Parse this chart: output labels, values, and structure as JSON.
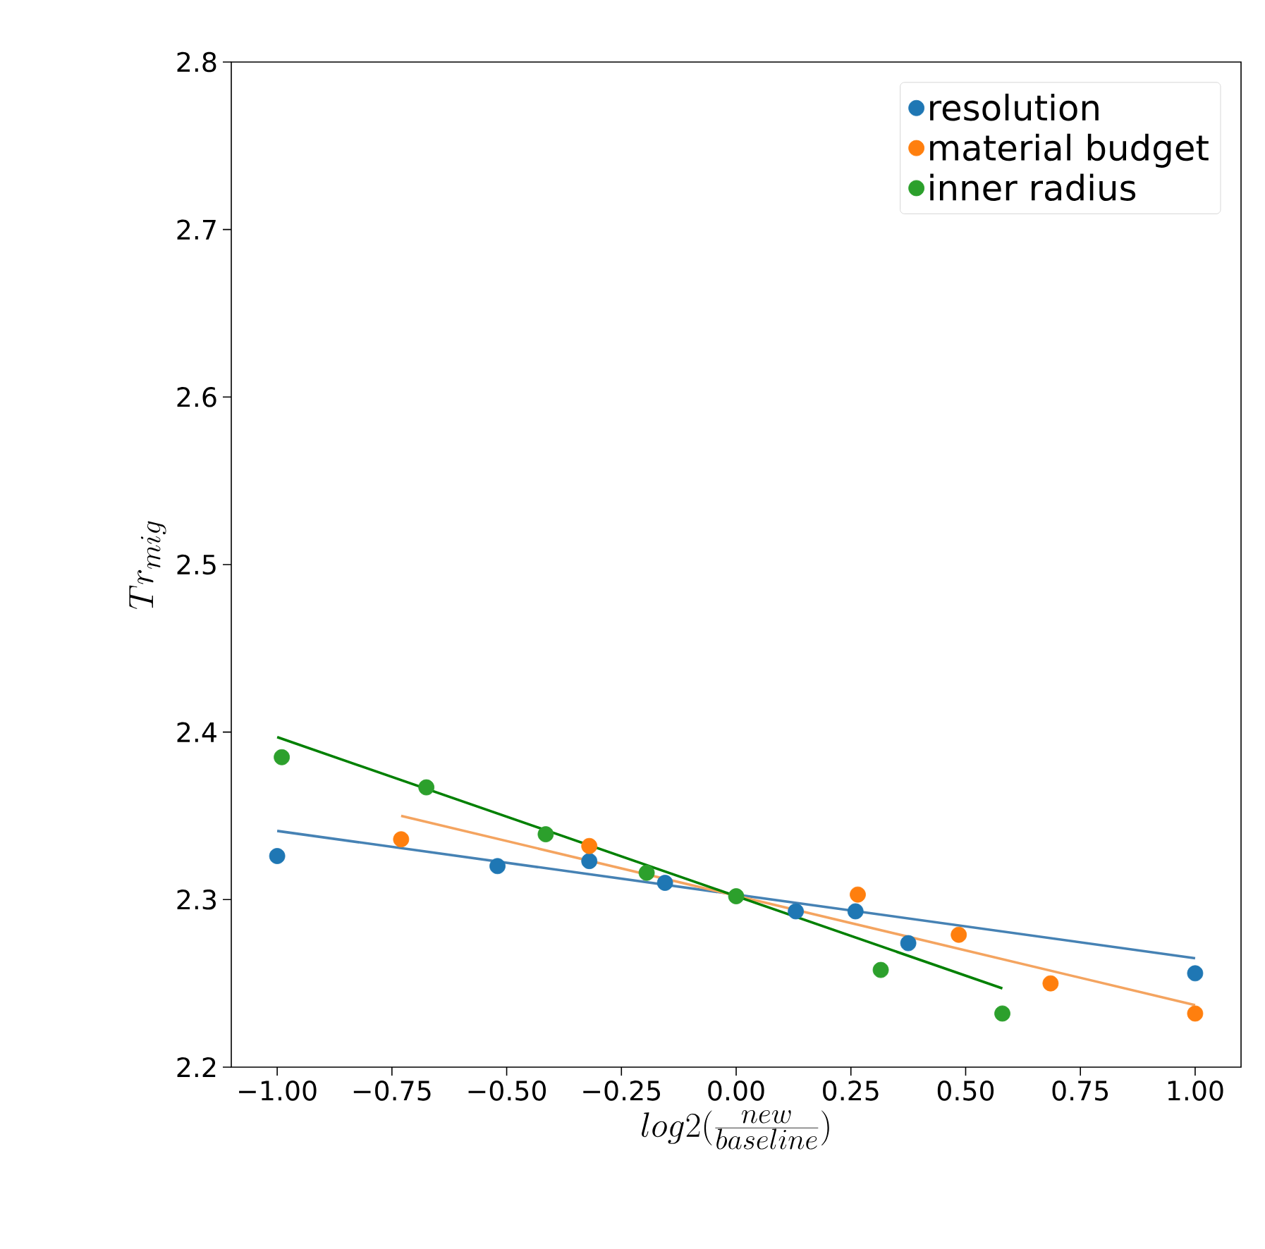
{
  "chart_data": {
    "type": "scatter",
    "xlabel": "log2(\\frac{new}{baseline})",
    "ylabel": "Tr_{mig}",
    "xlim": [
      -1.1,
      1.1
    ],
    "xticks": [
      {
        "value": -1.0,
        "label": "−1.00"
      },
      {
        "value": -0.75,
        "label": "−0.75"
      },
      {
        "value": -0.5,
        "label": "−0.50"
      },
      {
        "value": -0.25,
        "label": "−0.25"
      },
      {
        "value": 0.0,
        "label": "0.00"
      },
      {
        "value": 0.25,
        "label": "0.25"
      },
      {
        "value": 0.5,
        "label": "0.50"
      },
      {
        "value": 0.75,
        "label": "0.75"
      },
      {
        "value": 1.0,
        "label": "1.00"
      }
    ],
    "ylim": [
      2.2,
      2.8
    ],
    "yticks": [
      2.2,
      2.3,
      2.4,
      2.5,
      2.6,
      2.7,
      2.8
    ],
    "legend": "top right",
    "marker": "circle",
    "series": [
      {
        "name": "resolution",
        "color": "#1f77b4",
        "x": [
          -1.0,
          -0.52,
          -0.32,
          -0.155,
          0.0,
          0.13,
          0.26,
          0.375,
          1.0
        ],
        "values": [
          2.326,
          2.32,
          2.323,
          2.31,
          null,
          2.293,
          2.293,
          2.274,
          2.256
        ]
      },
      {
        "name": "material budget",
        "color": "#ff7f0e",
        "x": [
          -0.73,
          -0.32,
          0.265,
          0.485,
          0.685,
          1.0
        ],
        "values": [
          2.336,
          2.332,
          2.303,
          2.279,
          2.25,
          2.232
        ]
      },
      {
        "name": "inner radius",
        "color": "#2ca02c",
        "x": [
          -0.99,
          -0.675,
          -0.415,
          -0.195,
          0.0,
          0.315,
          0.58
        ],
        "values": [
          2.385,
          2.367,
          2.339,
          2.316,
          2.302,
          2.258,
          2.232
        ]
      },
      {
        "type": "line",
        "marker": "none",
        "color": "#4682b4",
        "x": [
          -1.0,
          1.0
        ],
        "values": [
          2.341,
          2.265
        ]
      },
      {
        "type": "line",
        "marker": "none",
        "color": "#f4a460",
        "x": [
          -0.73,
          1.0
        ],
        "values": [
          2.35,
          2.237
        ]
      },
      {
        "type": "line",
        "marker": "none",
        "color": "#008000",
        "x": [
          -1.0,
          0.58
        ],
        "values": [
          2.397,
          2.247
        ]
      }
    ]
  }
}
